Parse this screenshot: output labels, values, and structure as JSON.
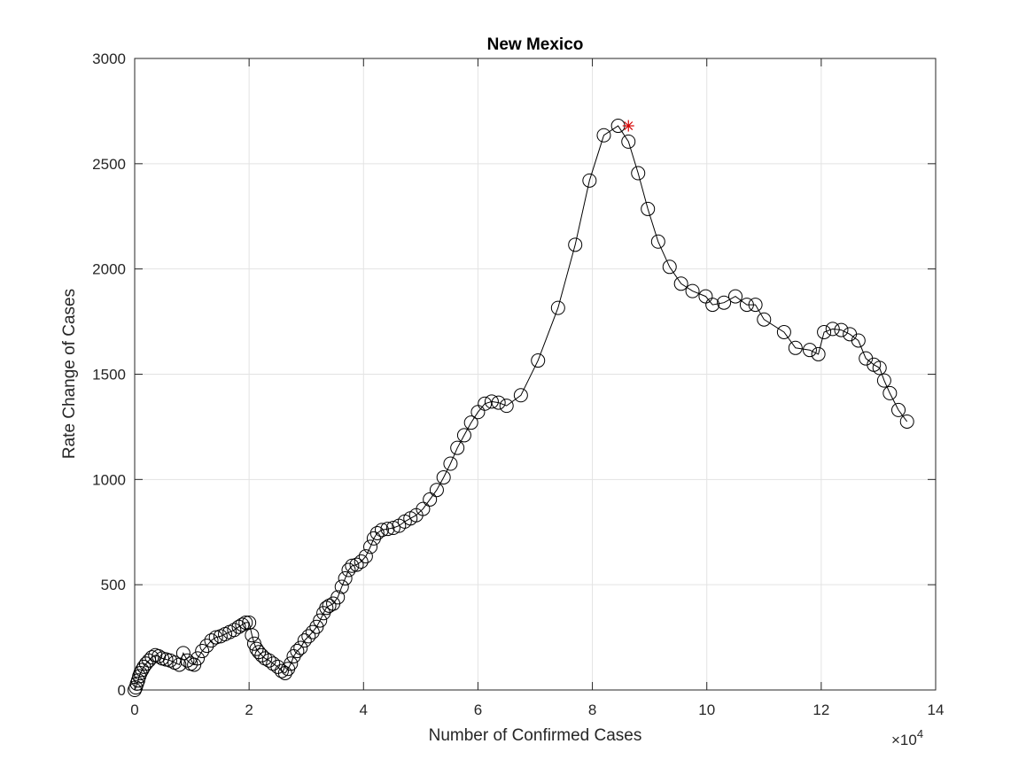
{
  "chart_data": {
    "type": "line",
    "title": "New Mexico",
    "xlabel": "Number of Confirmed Cases",
    "ylabel": "Rate Change of Cases",
    "x_exponent_label": "×10",
    "x_exponent_power": "4",
    "x_scale": 10000,
    "xlim": [
      0,
      14
    ],
    "ylim": [
      0,
      3000
    ],
    "x_ticks": [
      0,
      2,
      4,
      6,
      8,
      10,
      12,
      14
    ],
    "y_ticks": [
      0,
      500,
      1000,
      1500,
      2000,
      2500,
      3000
    ],
    "x_tick_labels": [
      "0",
      "2",
      "4",
      "6",
      "8",
      "10",
      "12",
      "14"
    ],
    "y_tick_labels": [
      "0",
      "500",
      "1000",
      "1500",
      "2000",
      "2500",
      "3000"
    ],
    "grid": true,
    "line_color": "#000000",
    "marker": "circle",
    "highlight_color": "#d40000",
    "series": [
      {
        "x": [
          0.0,
          0.02,
          0.04,
          0.06,
          0.08,
          0.1,
          0.13,
          0.16,
          0.2,
          0.25,
          0.3,
          0.36,
          0.42,
          0.48,
          0.55,
          0.62,
          0.7,
          0.78,
          0.85,
          0.92,
          0.98,
          1.04,
          1.1,
          1.18,
          1.26,
          1.34,
          1.42,
          1.5,
          1.58,
          1.66,
          1.74,
          1.82,
          1.88,
          1.94,
          2.0,
          2.05,
          2.09,
          2.13,
          2.17,
          2.22,
          2.28,
          2.35,
          2.42,
          2.5,
          2.57,
          2.63,
          2.68,
          2.73,
          2.78,
          2.84,
          2.9,
          2.97,
          3.04,
          3.11,
          3.18,
          3.24,
          3.3,
          3.35,
          3.4,
          3.47,
          3.55,
          3.62,
          3.68,
          3.74,
          3.8,
          3.88,
          3.96,
          4.04,
          4.12,
          4.18,
          4.24,
          4.32,
          4.42,
          4.52,
          4.62,
          4.72,
          4.82,
          4.92,
          5.04,
          5.16,
          5.28,
          5.4,
          5.52,
          5.64,
          5.76,
          5.88,
          6.0,
          6.12,
          6.24,
          6.36,
          6.5,
          6.75,
          7.05,
          7.4,
          7.7,
          7.95,
          8.2,
          8.45,
          8.63,
          8.8,
          8.97,
          9.15,
          9.35,
          9.55,
          9.75,
          9.98,
          10.1,
          10.3,
          10.5,
          10.7,
          10.85,
          11.0,
          11.35,
          11.55,
          11.8,
          11.95,
          12.05,
          12.2,
          12.35,
          12.5,
          12.65,
          12.78,
          12.92,
          13.02,
          13.1,
          13.2,
          13.35,
          13.5
        ],
        "y": [
          0,
          12,
          30,
          45,
          65,
          80,
          95,
          110,
          125,
          140,
          155,
          165,
          160,
          150,
          145,
          140,
          130,
          120,
          175,
          140,
          125,
          120,
          150,
          185,
          210,
          235,
          250,
          255,
          265,
          275,
          285,
          300,
          310,
          320,
          320,
          260,
          220,
          195,
          180,
          165,
          150,
          140,
          125,
          110,
          90,
          80,
          100,
          125,
          160,
          185,
          200,
          235,
          255,
          275,
          300,
          330,
          365,
          390,
          400,
          410,
          440,
          490,
          530,
          570,
          590,
          595,
          610,
          635,
          680,
          720,
          745,
          760,
          765,
          770,
          780,
          800,
          815,
          830,
          860,
          905,
          950,
          1010,
          1075,
          1150,
          1210,
          1270,
          1320,
          1360,
          1370,
          1365,
          1350,
          1400,
          1565,
          1815,
          2115,
          2420,
          2635,
          2680,
          2605,
          2455,
          2285,
          2130,
          2010,
          1930,
          1895,
          1870,
          1830,
          1840,
          1870,
          1830,
          1830,
          1760,
          1700,
          1625,
          1615,
          1595,
          1700,
          1715,
          1710,
          1690,
          1660,
          1575,
          1545,
          1530,
          1470,
          1410,
          1330,
          1275
        ],
        "highlight": {
          "x": 8.63,
          "y": 2680
        }
      }
    ]
  }
}
